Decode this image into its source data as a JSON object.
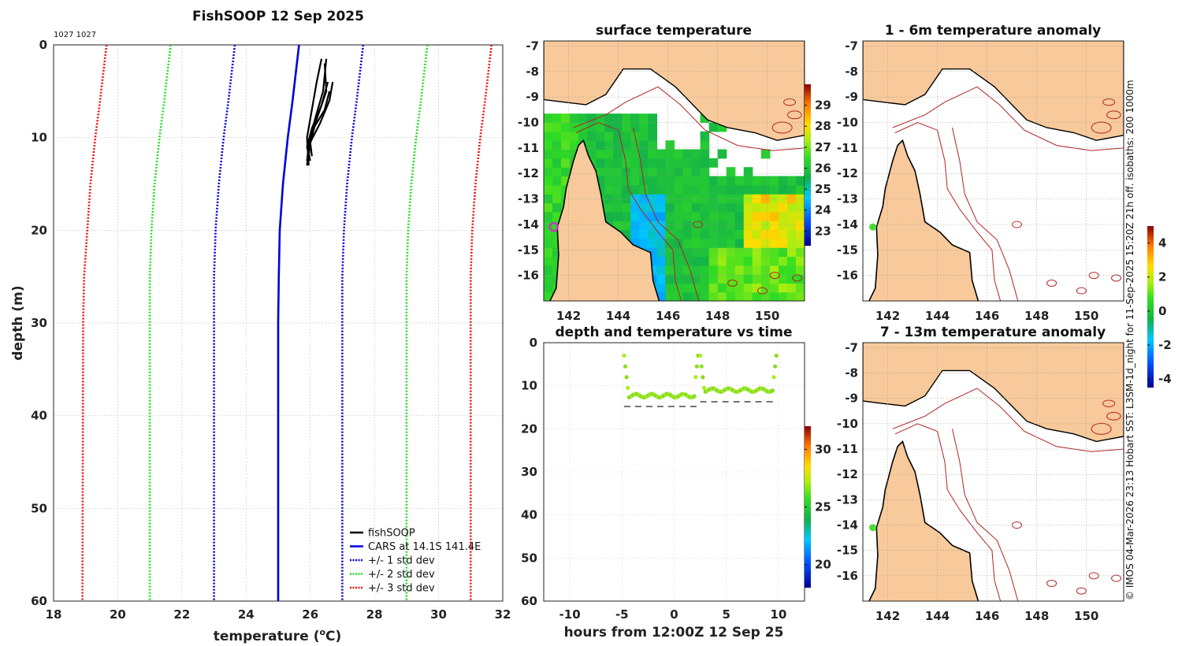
{
  "credit": "© IMOS 04-Mar-2026 23:13 Hobart SST: L3SM-1d_night for 11-Sep-2025 15:20Z 21h off. isobaths: 200  1000m",
  "colors": {
    "land": "#f8c99a",
    "ocean_white": "#ffffff",
    "isobath": "#b22222",
    "coast": "#000000",
    "grid": "#cccccc",
    "ship_marker": "#44dd33",
    "profile_marker": "#cc33cc"
  },
  "chart_data": [
    {
      "id": "profile",
      "type": "line",
      "title": "FishSOOP 12 Sep 2025",
      "corner_text": "1027 1027",
      "xlabel": "temperature",
      "xlabel_super": "o",
      "xlabel_tail": "C)",
      "xlabel_head": "temperature (",
      "ylabel": "depth (m)",
      "xlim": [
        18,
        32
      ],
      "ylim": [
        0,
        60
      ],
      "xticks": [
        18,
        20,
        22,
        24,
        26,
        28,
        30,
        32
      ],
      "yticks": [
        0,
        10,
        20,
        30,
        40,
        50,
        60
      ],
      "y_inverted": true,
      "grid": true,
      "legend_position": "bottom-right",
      "series": [
        {
          "name": "fishSOOP",
          "color": "#000000",
          "style": "solid",
          "profiles": [
            [
              [
                26.35,
                1.5
              ],
              [
                26.2,
                4
              ],
              [
                26.0,
                8
              ],
              [
                25.9,
                10
              ],
              [
                25.95,
                13
              ]
            ],
            [
              [
                26.5,
                1.5
              ],
              [
                26.4,
                5
              ],
              [
                26.15,
                8
              ],
              [
                25.95,
                11
              ],
              [
                25.9,
                12.5
              ]
            ],
            [
              [
                26.55,
                4
              ],
              [
                26.35,
                6.5
              ],
              [
                26.05,
                9
              ],
              [
                25.9,
                11
              ],
              [
                26.0,
                12.5
              ]
            ],
            [
              [
                26.45,
                2
              ],
              [
                26.5,
                5
              ],
              [
                26.2,
                8
              ],
              [
                26.0,
                10.5
              ],
              [
                25.95,
                12
              ]
            ],
            [
              [
                26.7,
                4
              ],
              [
                26.6,
                6
              ],
              [
                26.3,
                8.5
              ],
              [
                26.0,
                10.5
              ],
              [
                26.05,
                12
              ]
            ],
            [
              [
                26.6,
                5
              ],
              [
                26.45,
                7
              ],
              [
                26.1,
                9
              ],
              [
                25.95,
                11.5
              ],
              [
                25.9,
                13
              ]
            ]
          ]
        },
        {
          "name": "CARS at 14.1S 141.4E",
          "color": "#0000dd",
          "style": "solid",
          "points": [
            [
              25.65,
              0
            ],
            [
              25.55,
              3
            ],
            [
              25.45,
              6
            ],
            [
              25.3,
              10
            ],
            [
              25.15,
              15
            ],
            [
              25.05,
              20
            ],
            [
              25.02,
              25
            ],
            [
              25.0,
              30
            ],
            [
              25.0,
              40
            ],
            [
              25.0,
              50
            ],
            [
              25.0,
              60
            ]
          ]
        },
        {
          "name": "+/- 1 std dev",
          "color": "#0000dd",
          "style": "dotted",
          "points": [
            [
              23.65,
              0
            ],
            [
              23.55,
              3
            ],
            [
              23.45,
              6
            ],
            [
              23.3,
              10
            ],
            [
              23.15,
              15
            ],
            [
              23.05,
              20
            ],
            [
              23.0,
              25
            ],
            [
              23.0,
              30
            ],
            [
              23.0,
              60
            ]
          ],
          "points2": [
            [
              27.65,
              0
            ],
            [
              27.55,
              3
            ],
            [
              27.45,
              6
            ],
            [
              27.3,
              10
            ],
            [
              27.15,
              15
            ],
            [
              27.05,
              20
            ],
            [
              27.0,
              25
            ],
            [
              27.0,
              30
            ],
            [
              27.0,
              60
            ]
          ]
        },
        {
          "name": "+/- 2 std dev",
          "color": "#22dd22",
          "style": "dotted",
          "points": [
            [
              21.65,
              0
            ],
            [
              21.55,
              3
            ],
            [
              21.45,
              6
            ],
            [
              21.3,
              10
            ],
            [
              21.15,
              15
            ],
            [
              21.05,
              20
            ],
            [
              21.0,
              25
            ],
            [
              21.0,
              30
            ],
            [
              21.0,
              60
            ]
          ],
          "points2": [
            [
              29.65,
              0
            ],
            [
              29.55,
              3
            ],
            [
              29.45,
              6
            ],
            [
              29.3,
              10
            ],
            [
              29.15,
              15
            ],
            [
              29.05,
              20
            ],
            [
              29.0,
              25
            ],
            [
              29.0,
              30
            ],
            [
              29.0,
              60
            ]
          ]
        },
        {
          "name": "+/- 3 std dev",
          "color": "#ee1111",
          "style": "dotted",
          "points": [
            [
              19.65,
              0
            ],
            [
              19.55,
              3
            ],
            [
              19.45,
              6
            ],
            [
              19.3,
              10
            ],
            [
              19.15,
              15
            ],
            [
              19.05,
              20
            ],
            [
              18.95,
              25
            ],
            [
              18.92,
              30
            ],
            [
              18.9,
              60
            ]
          ],
          "points2": [
            [
              31.65,
              0
            ],
            [
              31.55,
              3
            ],
            [
              31.45,
              6
            ],
            [
              31.3,
              10
            ],
            [
              31.15,
              15
            ],
            [
              31.05,
              20
            ],
            [
              31.0,
              25
            ],
            [
              31.0,
              30
            ],
            [
              31.0,
              60
            ]
          ]
        }
      ]
    },
    {
      "id": "sst_map",
      "type": "heatmap",
      "title": "surface temperature",
      "xlim": [
        141,
        151.5
      ],
      "ylim": [
        -17,
        -6.8
      ],
      "xticks": [
        142,
        144,
        146,
        148,
        150
      ],
      "yticks": [
        -7,
        -8,
        -9,
        -10,
        -11,
        -12,
        -13,
        -14,
        -15,
        -16
      ],
      "colorbar_ticks": [
        23,
        24,
        25,
        26,
        27,
        28,
        29
      ],
      "colorbar_range": [
        22.3,
        30
      ],
      "marker": {
        "lon": 141.4,
        "lat": -14.1
      }
    },
    {
      "id": "depth_time",
      "type": "scatter",
      "title": "depth and temperature vs time",
      "xlabel": "hours from 12:00Z 12 Sep 25",
      "xlim": [
        -12.5,
        12.5
      ],
      "ylim": [
        0,
        60
      ],
      "xticks": [
        -10,
        -5,
        0,
        5,
        10
      ],
      "yticks": [
        0,
        10,
        20,
        30,
        40,
        50,
        60
      ],
      "y_inverted": true,
      "colorbar_ticks": [
        20,
        25,
        30
      ],
      "colorbar_range": [
        18,
        32
      ],
      "segments": [
        {
          "t_start": -4.8,
          "t_end": 2.3,
          "mean_depth": 12.3,
          "floor": 14.8
        },
        {
          "t_start": 2.5,
          "t_end": 9.8,
          "mean_depth": 11.0,
          "floor": 13.7
        }
      ]
    },
    {
      "id": "anom_1_6",
      "type": "heatmap",
      "title": "1 - 6m temperature anomaly",
      "xlim": [
        141,
        151.5
      ],
      "ylim": [
        -17,
        -6.8
      ],
      "xticks": [
        142,
        144,
        146,
        148,
        150
      ],
      "yticks": [
        -7,
        -8,
        -9,
        -10,
        -11,
        -12,
        -13,
        -14,
        -15,
        -16
      ],
      "marker": {
        "lon": 141.4,
        "lat": -14.1
      }
    },
    {
      "id": "anom_7_13",
      "type": "heatmap",
      "title": "7 - 13m temperature anomaly",
      "xlim": [
        141,
        151.5
      ],
      "ylim": [
        -17,
        -6.8
      ],
      "xticks": [
        142,
        144,
        146,
        148,
        150
      ],
      "yticks": [
        -7,
        -8,
        -9,
        -10,
        -11,
        -12,
        -13,
        -14,
        -15,
        -16
      ],
      "marker": {
        "lon": 141.4,
        "lat": -14.1
      },
      "colorbar_ticks": [
        -4,
        -2,
        0,
        2,
        4
      ],
      "colorbar_range": [
        -4.5,
        5
      ]
    }
  ]
}
